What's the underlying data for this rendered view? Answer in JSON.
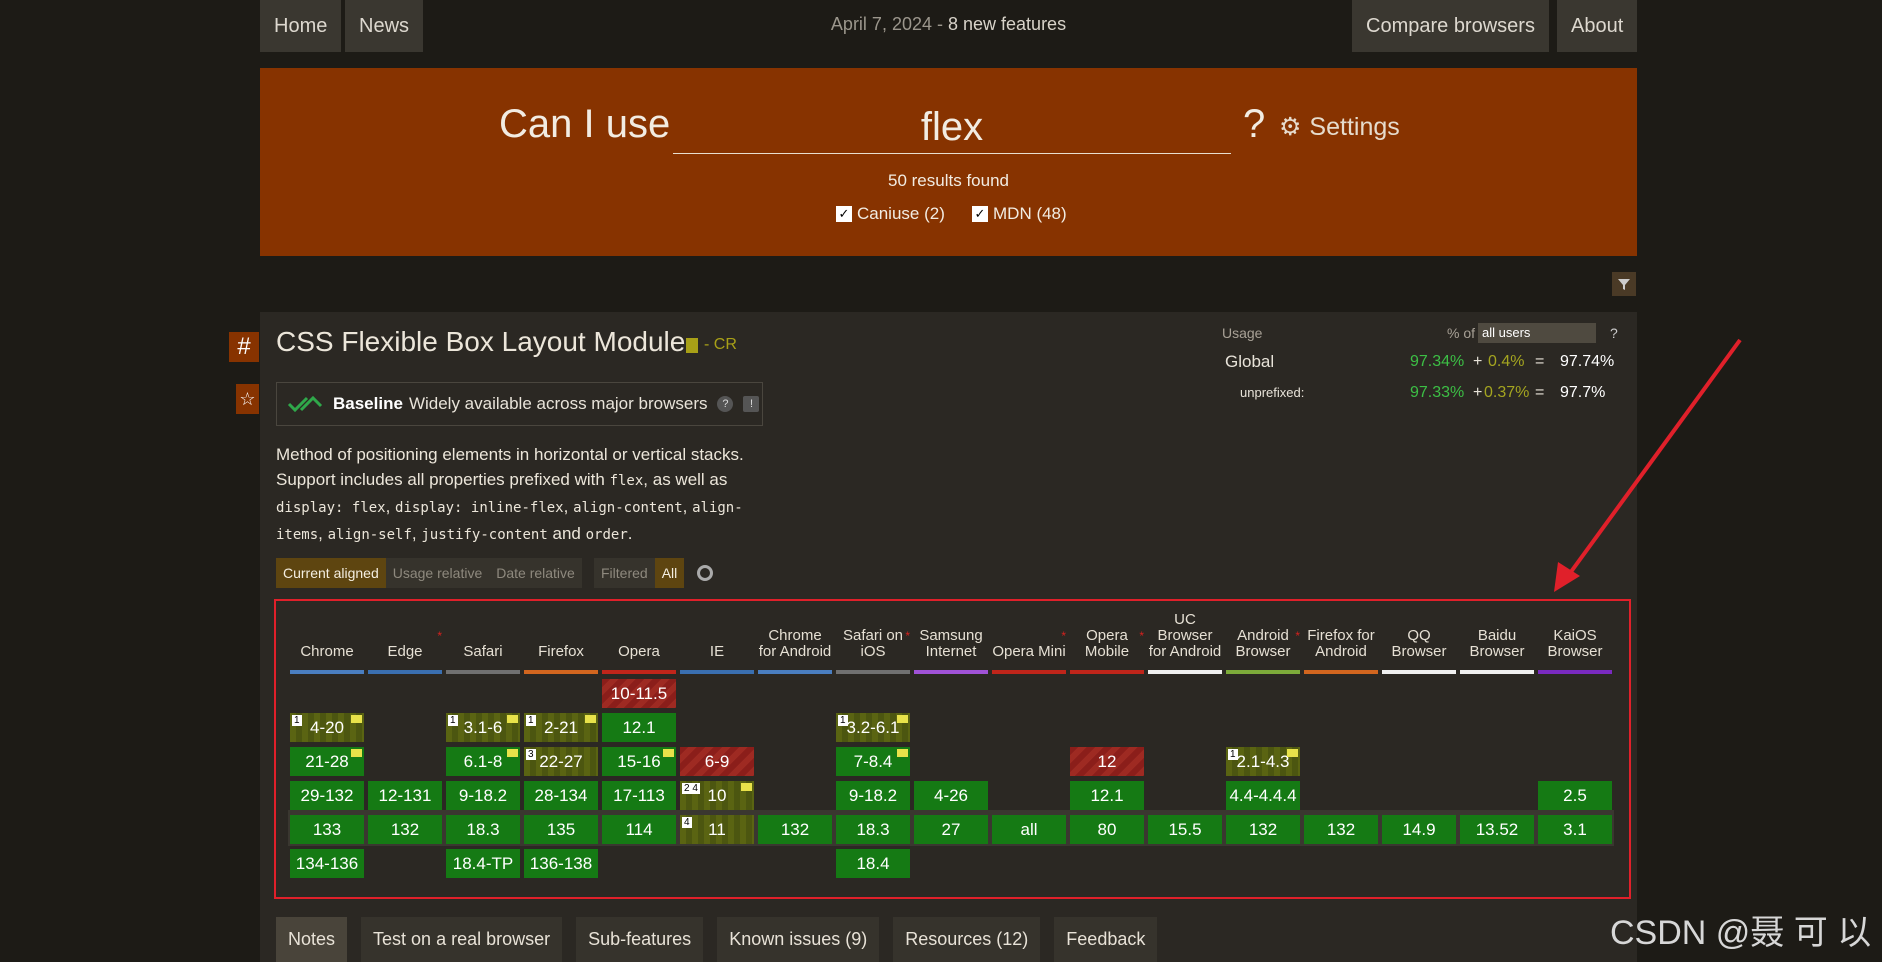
{
  "nav": {
    "home": "Home",
    "news": "News",
    "date": "April 7, 2024",
    "date_sep": " - ",
    "features": "8 new features",
    "compare": "Compare browsers",
    "about": "About"
  },
  "search": {
    "prefix": "Can I use",
    "query": "flex",
    "qmark": "?",
    "settings": "Settings",
    "results": "50 results found",
    "caniuse": "Caniuse (2)",
    "mdn": "MDN (48)"
  },
  "feature": {
    "title": "CSS Flexible Box Layout Module",
    "status": "- CR",
    "baseline": "Baseline",
    "baseline_desc": "Widely available across major browsers",
    "desc1": "Method of positioning elements in horizontal or vertical stacks. Support includes all properties prefixed with ",
    "code1": "flex",
    "desc2": ", as well as ",
    "code2": "display: flex",
    "c": ", ",
    "code3": "display: inline-flex",
    "code4": "align-content",
    "code5": "align-items",
    "code6": "align-self",
    "code7": "justify-content",
    "and": " and ",
    "code8": "order",
    "dot": "."
  },
  "tabs": {
    "current": "Current aligned",
    "usage": "Usage relative",
    "date": "Date relative",
    "filtered": "Filtered",
    "all": "All"
  },
  "usage": {
    "label": "Usage",
    "pctof": "% of",
    "select": "all users",
    "help": "?",
    "global": "Global",
    "g1": "97.34%",
    "plus": "+",
    "g2": "0.4%",
    "eq": "=",
    "gt": "97.74%",
    "unpref": "unprefixed:",
    "u1": "97.33%",
    "u2": "0.37%",
    "ut": "97.7%"
  },
  "browsers": [
    {
      "name": "Chrome",
      "color": "#4a7ec0"
    },
    {
      "name": "Edge",
      "color": "#3a6fb0"
    },
    {
      "name": "Safari",
      "color": "#707070"
    },
    {
      "name": "Firefox",
      "color": "#d2661f"
    },
    {
      "name": "Opera",
      "color": "#c0251a"
    },
    {
      "name": "IE",
      "color": "#3a6fb0"
    },
    {
      "name": "Chrome for Android",
      "color": "#4a7ec0"
    },
    {
      "name": "Safari on iOS",
      "color": "#707070"
    },
    {
      "name": "Samsung Internet",
      "color": "#a052d6"
    },
    {
      "name": "Opera Mini",
      "color": "#c0251a"
    },
    {
      "name": "Opera Mobile",
      "color": "#c0251a"
    },
    {
      "name": "UC Browser for Android",
      "color": "#f0f0f0"
    },
    {
      "name": "Android Browser",
      "color": "#7dab3a"
    },
    {
      "name": "Firefox for Android",
      "color": "#d2661f"
    },
    {
      "name": "QQ Browser",
      "color": "#f0f0f0"
    },
    {
      "name": "Baidu Browser",
      "color": "#f0f0f0"
    },
    {
      "name": "KaiOS Browser",
      "color": "#7a2ac0"
    }
  ],
  "cells": [
    {
      "c": 4,
      "r": 0,
      "t": "10-11.5",
      "s": "n"
    },
    {
      "c": 0,
      "r": 1,
      "t": "4-20",
      "s": "p",
      "sup": "1",
      "dash": true
    },
    {
      "c": 2,
      "r": 1,
      "t": "3.1-6",
      "s": "p",
      "sup": "1",
      "dash": true
    },
    {
      "c": 3,
      "r": 1,
      "t": "2-21",
      "s": "p",
      "sup": "1",
      "dash": true
    },
    {
      "c": 4,
      "r": 1,
      "t": "12.1",
      "s": "y"
    },
    {
      "c": 7,
      "r": 1,
      "t": "3.2-6.1",
      "s": "p",
      "sup": "1",
      "dash": true
    },
    {
      "c": 0,
      "r": 2,
      "t": "21-28",
      "s": "y",
      "dash": true
    },
    {
      "c": 2,
      "r": 2,
      "t": "6.1-8",
      "s": "y",
      "dash": true
    },
    {
      "c": 3,
      "r": 2,
      "t": "22-27",
      "s": "p",
      "sup": "3"
    },
    {
      "c": 4,
      "r": 2,
      "t": "15-16",
      "s": "y",
      "dash": true
    },
    {
      "c": 5,
      "r": 2,
      "t": "6-9",
      "s": "n"
    },
    {
      "c": 7,
      "r": 2,
      "t": "7-8.4",
      "s": "y",
      "dash": true
    },
    {
      "c": 10,
      "r": 2,
      "t": "12",
      "s": "n"
    },
    {
      "c": 12,
      "r": 2,
      "t": "2.1-4.3",
      "s": "p",
      "sup": "1",
      "dash": true
    },
    {
      "c": 0,
      "r": 3,
      "t": "29-132",
      "s": "y"
    },
    {
      "c": 1,
      "r": 3,
      "t": "12-131",
      "s": "y"
    },
    {
      "c": 2,
      "r": 3,
      "t": "9-18.2",
      "s": "y"
    },
    {
      "c": 3,
      "r": 3,
      "t": "28-134",
      "s": "y"
    },
    {
      "c": 4,
      "r": 3,
      "t": "17-113",
      "s": "y"
    },
    {
      "c": 5,
      "r": 3,
      "t": "10",
      "s": "p",
      "sup": "2 4",
      "dash": true
    },
    {
      "c": 7,
      "r": 3,
      "t": "9-18.2",
      "s": "y"
    },
    {
      "c": 8,
      "r": 3,
      "t": "4-26",
      "s": "y"
    },
    {
      "c": 10,
      "r": 3,
      "t": "12.1",
      "s": "y"
    },
    {
      "c": 12,
      "r": 3,
      "t": "4.4-4.4.4",
      "s": "y"
    },
    {
      "c": 16,
      "r": 3,
      "t": "2.5",
      "s": "y"
    },
    {
      "c": 0,
      "r": 4,
      "t": "133",
      "s": "y"
    },
    {
      "c": 1,
      "r": 4,
      "t": "132",
      "s": "y"
    },
    {
      "c": 2,
      "r": 4,
      "t": "18.3",
      "s": "y"
    },
    {
      "c": 3,
      "r": 4,
      "t": "135",
      "s": "y"
    },
    {
      "c": 4,
      "r": 4,
      "t": "114",
      "s": "y"
    },
    {
      "c": 5,
      "r": 4,
      "t": "11",
      "s": "p",
      "sup": "4"
    },
    {
      "c": 6,
      "r": 4,
      "t": "132",
      "s": "y"
    },
    {
      "c": 7,
      "r": 4,
      "t": "18.3",
      "s": "y"
    },
    {
      "c": 8,
      "r": 4,
      "t": "27",
      "s": "y"
    },
    {
      "c": 9,
      "r": 4,
      "t": "all",
      "s": "y"
    },
    {
      "c": 10,
      "r": 4,
      "t": "80",
      "s": "y"
    },
    {
      "c": 11,
      "r": 4,
      "t": "15.5",
      "s": "y"
    },
    {
      "c": 12,
      "r": 4,
      "t": "132",
      "s": "y"
    },
    {
      "c": 13,
      "r": 4,
      "t": "132",
      "s": "y"
    },
    {
      "c": 14,
      "r": 4,
      "t": "14.9",
      "s": "y"
    },
    {
      "c": 15,
      "r": 4,
      "t": "13.52",
      "s": "y"
    },
    {
      "c": 16,
      "r": 4,
      "t": "3.1",
      "s": "y"
    },
    {
      "c": 0,
      "r": 5,
      "t": "134-136",
      "s": "y"
    },
    {
      "c": 2,
      "r": 5,
      "t": "18.4-TP",
      "s": "y"
    },
    {
      "c": 3,
      "r": 5,
      "t": "136-138",
      "s": "y"
    },
    {
      "c": 7,
      "r": 5,
      "t": "18.4",
      "s": "y"
    }
  ],
  "bottom_tabs": [
    "Notes",
    "Test on a real browser",
    "Sub-features",
    "Known issues (9)",
    "Resources (12)",
    "Feedback"
  ],
  "watermark": "CSDN @聂 可 以"
}
